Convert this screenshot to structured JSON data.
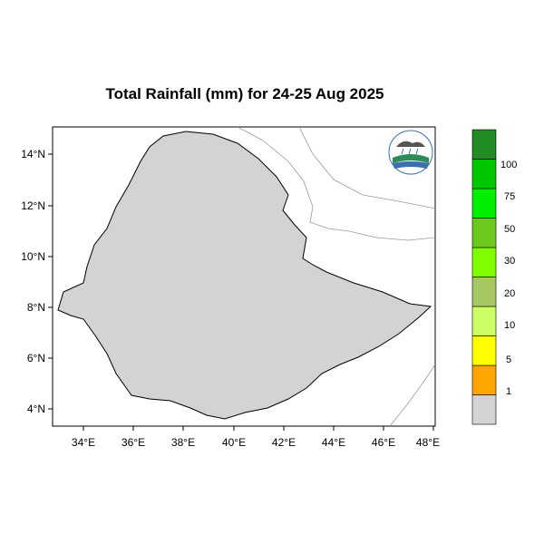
{
  "title": "Total Rainfall (mm) for 24-25 Aug 2025",
  "map": {
    "x_ticks": [
      "34°E",
      "36°E",
      "38°E",
      "40°E",
      "42°E",
      "44°E",
      "46°E",
      "48°E"
    ],
    "y_ticks": [
      "14°N",
      "12°N",
      "10°N",
      "8°N",
      "6°N",
      "4°N"
    ],
    "lon_range": [
      32.8,
      48.2
    ],
    "lat_range": [
      3.2,
      15.0
    ]
  },
  "legend": {
    "labels": [
      "1",
      "5",
      "10",
      "20",
      "30",
      "50",
      "75",
      "100"
    ],
    "colors": [
      "#d3d3d3",
      "#ffa500",
      "#ffff00",
      "#ccff66",
      "#a5c864",
      "#80ff00",
      "#6cc81c",
      "#00ee00",
      "#00c800",
      "#228b22"
    ]
  },
  "logo": {
    "icon": "ethiopian-meteorology-logo"
  },
  "chart_data": {
    "type": "heatmap",
    "title": "Total Rainfall (mm) for 24-25 Aug 2025",
    "xlabel": "",
    "ylabel": "",
    "xlim": [
      32.8,
      48.2
    ],
    "ylim": [
      3.2,
      15.0
    ],
    "x_ticks": [
      "34°E",
      "36°E",
      "38°E",
      "40°E",
      "42°E",
      "44°E",
      "46°E",
      "48°E"
    ],
    "y_ticks": [
      "14°N",
      "12°N",
      "10°N",
      "8°N",
      "6°N",
      "4°N"
    ],
    "color_bins_mm": [
      1,
      5,
      10,
      20,
      30,
      50,
      75,
      100
    ]
  }
}
